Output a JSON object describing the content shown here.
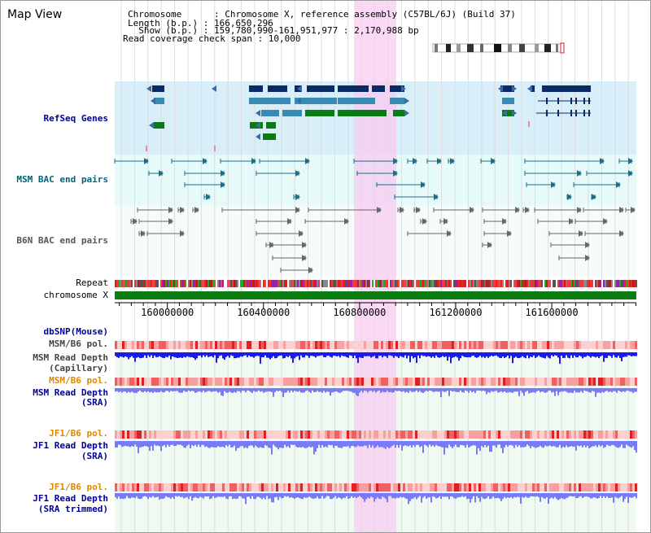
{
  "title": "Map View",
  "header": {
    "chromosome": "Chromosome      : Chromosome X, reference assembly (C57BL/6J) (Build 37)",
    "length": "Length (b.p.) : 166,650,296",
    "show": "  Show (b.p.) : 159,780,990-161,951,977 : 2,170,988 bp",
    "coverage": "Read coverage check span : 10,000"
  },
  "tracks": {
    "refseq": "RefSeq Genes",
    "msm_bac": "MSM BAC end pairs",
    "b6n_bac": "B6N BAC end pairs",
    "repeat": "Repeat",
    "chromosome": "chromosome X",
    "dbsnp": "dbSNP(Mouse)",
    "msm_b6_pol_1": "MSM/B6 pol.",
    "msm_depth_cap_1": "MSM Read Depth",
    "msm_depth_cap_2": "(Capillary)",
    "msm_b6_pol_2": "MSM/B6 pol.",
    "msm_depth_sra_1": "MSM Read Depth",
    "msm_depth_sra_2": "(SRA)",
    "jf1_b6_pol_1": "JF1/B6 pol.",
    "jf1_depth_sra_1": "JF1 Read Depth",
    "jf1_depth_sra_2": "(SRA)",
    "jf1_b6_pol_2": "JF1/B6 pol.",
    "jf1_depth_trim_1": "JF1 Read Depth",
    "jf1_depth_trim_2": "(SRA trimmed)"
  },
  "axis": {
    "ticks": [
      {
        "label": "160000000",
        "value": 160000000
      },
      {
        "label": "160400000",
        "value": 160400000
      },
      {
        "label": "160800000",
        "value": 160800000
      },
      {
        "label": "161200000",
        "value": 161200000
      },
      {
        "label": "161600000",
        "value": 161600000
      }
    ]
  },
  "colors": {
    "refseq_bg": "#d8eef9",
    "bac_bg": "#e6fafa",
    "highlight": "#f7ccf0",
    "gene_dark": "#0a2a66",
    "gene_mid": "#3b8ab4",
    "gene_green": "#0a7a14",
    "chrom_band": "#0b7d12",
    "depth_blue": "#1a1aee",
    "depth_light": "#7a7af7"
  }
}
